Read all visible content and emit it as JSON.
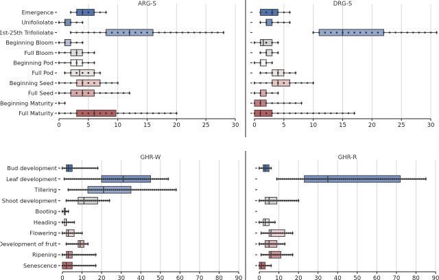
{
  "chart_data": [
    {
      "type": "box",
      "title": "ARG-S",
      "xlim": [
        0,
        30
      ],
      "xticks": [
        0,
        5,
        10,
        15,
        20,
        25,
        30
      ],
      "grid": true,
      "categories": [
        "Emergence",
        "Unifoliolate",
        "1st-25th Trifoliolate",
        "Beginning Bloom",
        "Full Bloom",
        "Beginning Pod",
        "Full Pod",
        "Beginning Seed",
        "Full Seed",
        "Beginning Maturity",
        "Full Maturity"
      ],
      "boxes": [
        {
          "whislo": 2,
          "q1": 3,
          "med": 4,
          "q3": 6,
          "whishi": 8,
          "color": "#4f74b0"
        },
        {
          "whislo": 0,
          "q1": 1,
          "med": 1,
          "q3": 2,
          "whishi": 4,
          "color": "#6f8fc0"
        },
        {
          "whislo": 2,
          "q1": 8,
          "med": 12,
          "q3": 16,
          "whishi": 28,
          "color": "#94a9cd"
        },
        {
          "whislo": 0,
          "q1": 1,
          "med": 1,
          "q3": 2,
          "whishi": 4,
          "color": "#b3c0da"
        },
        {
          "whislo": 0,
          "q1": 2,
          "med": 3,
          "q3": 4,
          "whishi": 6,
          "color": "#dcdcdc"
        },
        {
          "whislo": 0,
          "q1": 2,
          "med": 3,
          "q3": 4,
          "whishi": 6,
          "color": "#f4f4f4"
        },
        {
          "whislo": 1,
          "q1": 2,
          "med": 3.5,
          "q3": 6,
          "whishi": 7,
          "color": "#e9e0e0"
        },
        {
          "whislo": 0,
          "q1": 3,
          "med": 4,
          "q3": 7,
          "whishi": 10,
          "color": "#e6c4c4"
        },
        {
          "whislo": 0,
          "q1": 2,
          "med": 4,
          "q3": 6,
          "whishi": 12,
          "color": "#dca9a9"
        },
        {
          "whislo": 0,
          "q1": 0,
          "med": 0,
          "q3": 0,
          "whishi": 1,
          "color": "#cc8888"
        },
        {
          "whislo": 0,
          "q1": 3,
          "med": 6,
          "q3": 9.7,
          "whishi": 20,
          "color": "#b35f5f"
        }
      ]
    },
    {
      "type": "box",
      "title": "DRG-S",
      "xlim": [
        0,
        30
      ],
      "xticks": [
        0,
        5,
        10,
        15,
        20,
        25,
        30
      ],
      "grid": true,
      "categories": [
        "Emergence",
        "Unifoliolate",
        "1st-25th Trifoliolate",
        "Beginning Bloom",
        "Full Bloom",
        "Beginning Pod",
        "Full Pod",
        "Beginning Seed",
        "Full Seed",
        "Beginning Maturity",
        "Full Maturity"
      ],
      "boxes": [
        {
          "whislo": 1,
          "q1": 1,
          "med": 3,
          "q3": 4,
          "whishi": 6,
          "color": "#4f74b0"
        },
        {
          "whislo": 1,
          "q1": 2,
          "med": 2,
          "q3": 3,
          "whishi": 6,
          "color": "#6f8fc0"
        },
        {
          "whislo": 10,
          "q1": 11,
          "med": 15,
          "q3": 22,
          "whishi": 31,
          "color": "#94a9cd"
        },
        {
          "whislo": 0,
          "q1": 1,
          "med": 1.5,
          "q3": 3,
          "whishi": 4,
          "color": "#d0d0d0"
        },
        {
          "whislo": 1,
          "q1": 2,
          "med": 2,
          "q3": 3,
          "whishi": 4,
          "color": "#dcdcdc"
        },
        {
          "whislo": 0,
          "q1": 1,
          "med": 1,
          "q3": 2,
          "whishi": 3,
          "color": "#f4f4f4"
        },
        {
          "whislo": 1,
          "q1": 3,
          "med": 4,
          "q3": 5,
          "whishi": 7,
          "color": "#e9e0e0"
        },
        {
          "whislo": 0,
          "q1": 3,
          "med": 4,
          "q3": 6,
          "whishi": 10,
          "color": "#e6c4c4"
        },
        {
          "whislo": 0,
          "q1": 1,
          "med": 1,
          "q3": 2,
          "whishi": 4,
          "color": "#dca9a9"
        },
        {
          "whislo": 0,
          "q1": 0,
          "med": 1,
          "q3": 2,
          "whishi": 8,
          "color": "#c47c7c"
        },
        {
          "whislo": 0,
          "q1": 0,
          "med": 1,
          "q3": 3,
          "whishi": 17,
          "color": "#b35f5f"
        }
      ]
    },
    {
      "type": "box",
      "title": "GHR-W",
      "xlim": [
        0,
        90
      ],
      "xticks": [
        0,
        10,
        20,
        30,
        40,
        50,
        60,
        70,
        80,
        90
      ],
      "grid": true,
      "categories": [
        "Bud development",
        "Leaf development",
        "Tillering",
        "Shoot development",
        "Booting",
        "Heading",
        "Flowering",
        "Development of fruit",
        "Ripening",
        "Senescence"
      ],
      "boxes": [
        {
          "whislo": 0,
          "q1": 2,
          "med": 3,
          "q3": 5,
          "whishi": 18,
          "color": "#4f74b0"
        },
        {
          "whislo": 1,
          "q1": 20,
          "med": 31,
          "q3": 45,
          "whishi": 54,
          "color": "#7893c4"
        },
        {
          "whislo": 3,
          "q1": 13,
          "med": 21,
          "q3": 35,
          "whishi": 58,
          "color": "#94a9cd"
        },
        {
          "whislo": 2,
          "q1": 8,
          "med": 11,
          "q3": 18,
          "whishi": 24,
          "color": "#d4d4d4"
        },
        {
          "whislo": 0,
          "q1": 1,
          "med": 1,
          "q3": 1.5,
          "whishi": 3,
          "color": "#e8e8e8"
        },
        {
          "whislo": 0,
          "q1": 1,
          "med": 2,
          "q3": 2,
          "whishi": 6,
          "color": "#f2f2f2"
        },
        {
          "whislo": 0,
          "q1": 2,
          "med": 3,
          "q3": 6,
          "whishi": 10,
          "color": "#ecd4d4"
        },
        {
          "whislo": 2,
          "q1": 8,
          "med": 9,
          "q3": 11,
          "whishi": 13,
          "color": "#e2b4b4"
        },
        {
          "whislo": 0,
          "q1": 2,
          "med": 3,
          "q3": 5,
          "whishi": 17,
          "color": "#d49494"
        },
        {
          "whislo": 0,
          "q1": 0,
          "med": 2,
          "q3": 5,
          "whishi": 17,
          "color": "#c06a6a"
        }
      ]
    },
    {
      "type": "box",
      "title": "GHR-R",
      "xlim": [
        0,
        90
      ],
      "xticks": [
        0,
        10,
        20,
        30,
        40,
        50,
        60,
        70,
        80,
        90
      ],
      "grid": true,
      "categories": [
        "Bud development",
        "Leaf development",
        "Tillering",
        "Shoot development",
        "Booting",
        "Heading",
        "Flowering",
        "Development of fruit",
        "Ripening",
        "Senescence"
      ],
      "boxes": [
        {
          "whislo": 0,
          "q1": 2,
          "med": 3,
          "q3": 5,
          "whishi": 6,
          "color": "#4f74b0"
        },
        {
          "whislo": 9,
          "q1": 23,
          "med": 35,
          "q3": 72,
          "whishi": 85,
          "color": "#7893c4"
        },
        null,
        {
          "whislo": 0,
          "q1": 3,
          "med": 5,
          "q3": 9,
          "whishi": 20,
          "color": "#d4d4d4"
        },
        null,
        {
          "whislo": 0,
          "q1": 2,
          "med": 3,
          "q3": 5,
          "whishi": 8,
          "color": "#e6e6e6"
        },
        {
          "whislo": 1,
          "q1": 5,
          "med": 6,
          "q3": 13,
          "whishi": 17,
          "color": "#ecd4d4"
        },
        {
          "whislo": 0,
          "q1": 3,
          "med": 5,
          "q3": 9,
          "whishi": 13,
          "color": "#e2b4b4"
        },
        {
          "whislo": 1,
          "q1": 5,
          "med": 6,
          "q3": 11,
          "whishi": 17,
          "color": "#d49494"
        },
        {
          "whislo": 0,
          "q1": 0,
          "med": 1,
          "q3": 3,
          "whishi": 6,
          "color": "#c06a6a"
        }
      ]
    }
  ]
}
